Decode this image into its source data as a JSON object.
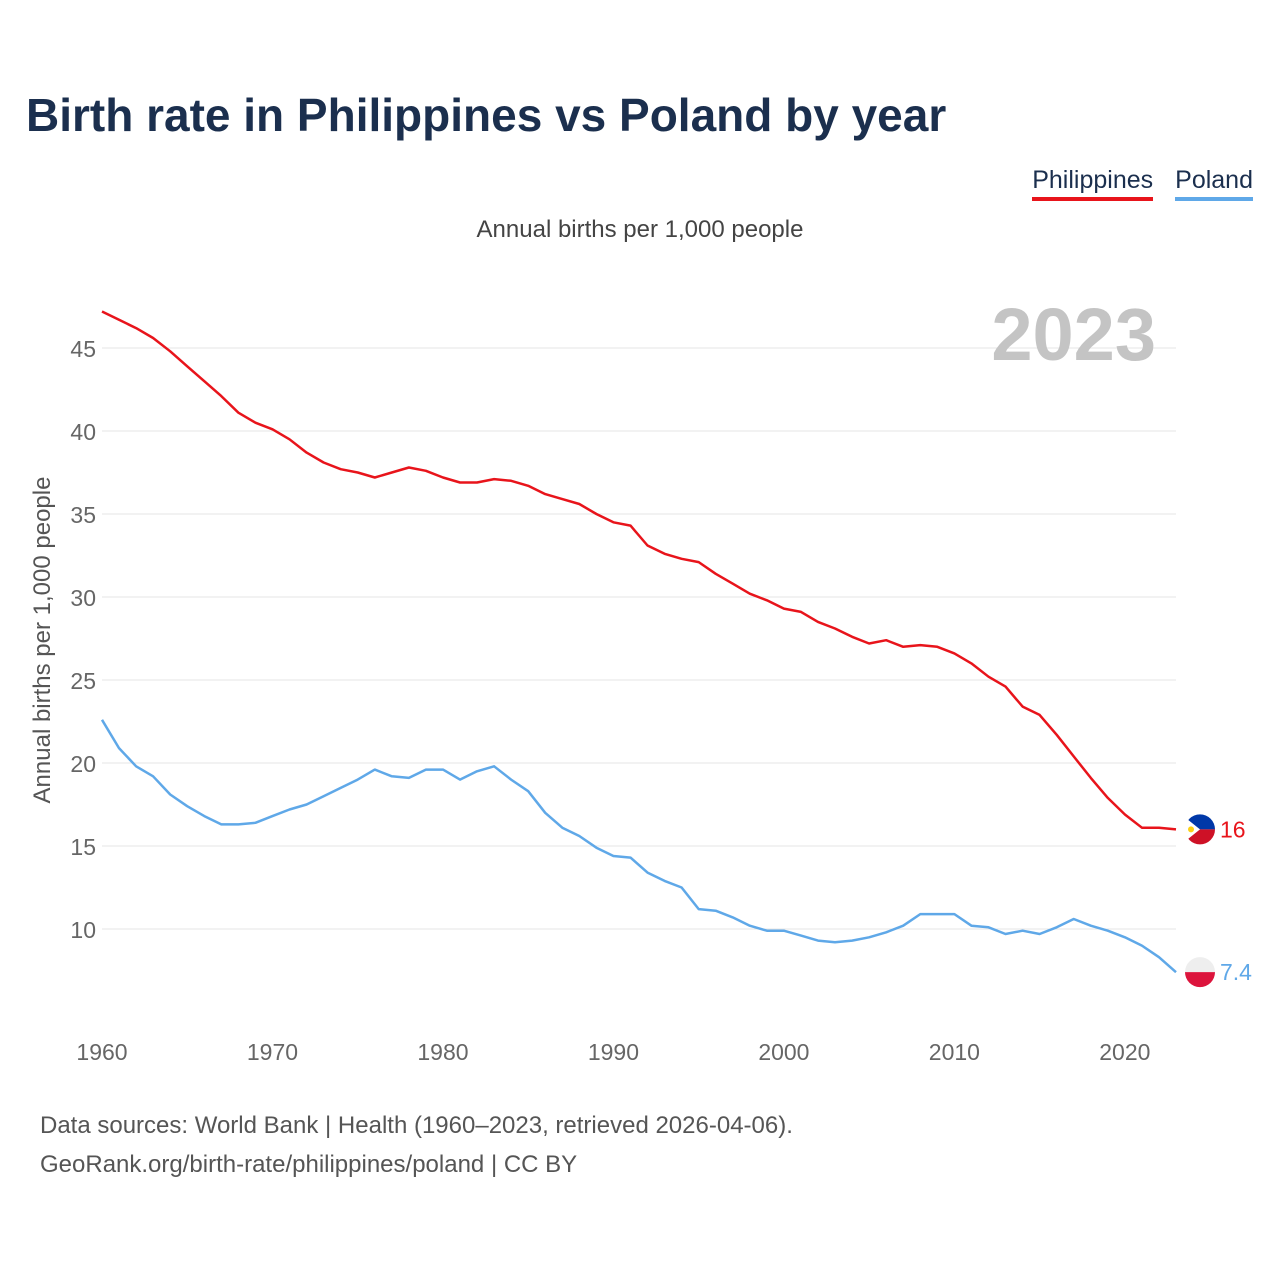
{
  "title": "Birth rate in Philippines vs Poland by year",
  "legend": {
    "philippines": "Philippines",
    "poland": "Poland"
  },
  "subtitle": "Annual births per 1,000 people",
  "year_display": "2023",
  "source": {
    "line1": "Data sources: World Bank | Health (1960–2023, retrieved 2026-04-06).",
    "line2": "GeoRank.org/birth-rate/philippines/poland | CC BY"
  },
  "colors": {
    "philippines": "#e8141b",
    "poland": "#5fa8e8",
    "title": "#1b2f4e",
    "grid": "#e6e6e6"
  },
  "chart_data": {
    "type": "line",
    "title": "Birth rate in Philippines vs Poland by year",
    "xlabel": "",
    "ylabel": "Annual births per 1,000 people",
    "xlim": [
      1960,
      2023
    ],
    "ylim": [
      5,
      48
    ],
    "yticks": [
      10,
      15,
      20,
      25,
      30,
      35,
      40,
      45
    ],
    "xticks": [
      1960,
      1970,
      1980,
      1990,
      2000,
      2010,
      2020
    ],
    "grid": true,
    "legend_position": "top-right",
    "x": [
      1960,
      1961,
      1962,
      1963,
      1964,
      1965,
      1966,
      1967,
      1968,
      1969,
      1970,
      1971,
      1972,
      1973,
      1974,
      1975,
      1976,
      1977,
      1978,
      1979,
      1980,
      1981,
      1982,
      1983,
      1984,
      1985,
      1986,
      1987,
      1988,
      1989,
      1990,
      1991,
      1992,
      1993,
      1994,
      1995,
      1996,
      1997,
      1998,
      1999,
      2000,
      2001,
      2002,
      2003,
      2004,
      2005,
      2006,
      2007,
      2008,
      2009,
      2010,
      2011,
      2012,
      2013,
      2014,
      2015,
      2016,
      2017,
      2018,
      2019,
      2020,
      2021,
      2022,
      2023
    ],
    "series": [
      {
        "name": "Philippines",
        "end_label": "16",
        "values": [
          47.2,
          46.7,
          46.2,
          45.6,
          44.8,
          43.9,
          43.0,
          42.1,
          41.1,
          40.5,
          40.1,
          39.5,
          38.7,
          38.1,
          37.7,
          37.5,
          37.2,
          37.5,
          37.8,
          37.6,
          37.2,
          36.9,
          36.9,
          37.1,
          37.0,
          36.7,
          36.2,
          35.9,
          35.6,
          35.0,
          34.5,
          34.3,
          33.1,
          32.6,
          32.3,
          32.1,
          31.4,
          30.8,
          30.2,
          29.8,
          29.3,
          29.1,
          28.5,
          28.1,
          27.6,
          27.2,
          27.4,
          27.0,
          27.1,
          27.0,
          26.6,
          26.0,
          25.2,
          24.6,
          23.4,
          22.9,
          21.7,
          20.4,
          19.1,
          17.9,
          16.9,
          16.1,
          16.1,
          16.0
        ]
      },
      {
        "name": "Poland",
        "end_label": "7.4",
        "values": [
          22.6,
          20.9,
          19.8,
          19.2,
          18.1,
          17.4,
          16.8,
          16.3,
          16.3,
          16.4,
          16.8,
          17.2,
          17.5,
          18.0,
          18.5,
          19.0,
          19.6,
          19.2,
          19.1,
          19.6,
          19.6,
          19.0,
          19.5,
          19.8,
          19.0,
          18.3,
          17.0,
          16.1,
          15.6,
          14.9,
          14.4,
          14.3,
          13.4,
          12.9,
          12.5,
          11.2,
          11.1,
          10.7,
          10.2,
          9.9,
          9.9,
          9.6,
          9.3,
          9.2,
          9.3,
          9.5,
          9.8,
          10.2,
          10.9,
          10.9,
          10.9,
          10.2,
          10.1,
          9.7,
          9.9,
          9.7,
          10.1,
          10.6,
          10.2,
          9.9,
          9.5,
          9.0,
          8.3,
          7.4
        ]
      }
    ]
  }
}
